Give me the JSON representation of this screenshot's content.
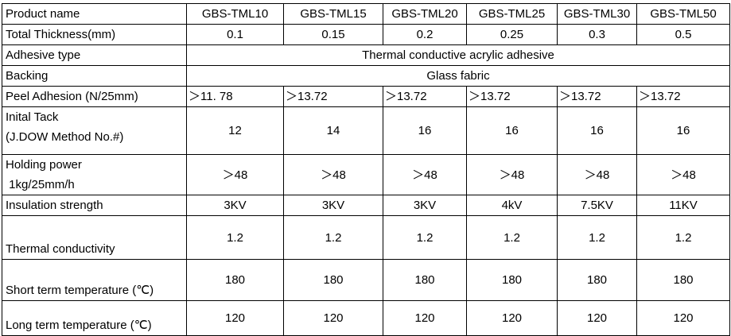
{
  "table": {
    "header": [
      "Product name",
      "GBS-TML10",
      "GBS-TML15",
      "GBS-TML20",
      "GBS-TML25",
      "GBS-TML30",
      "GBS-TML50"
    ],
    "rows": [
      {
        "label": [
          "Total Thickness(mm)"
        ],
        "cells": [
          "0.1",
          "0.15",
          "0.2",
          "0.25",
          "0.3",
          "0.5"
        ]
      },
      {
        "label": [
          "Adhesive type"
        ],
        "merged_value": "Thermal conductive acrylic adhesive"
      },
      {
        "label": [
          "Backing"
        ],
        "merged_value": "Glass fabric"
      },
      {
        "label": [
          "Peel Adhesion (N/25mm)"
        ],
        "cells": [
          "＞11. 78",
          "＞13.72",
          "＞13.72",
          "＞13.72",
          "＞13.72",
          "＞13.72"
        ]
      },
      {
        "label": [
          "Inital Tack",
          "(J.DOW Method No.#)"
        ],
        "cells": [
          "12",
          "14",
          "16",
          "16",
          "16",
          "16"
        ]
      },
      {
        "label": [
          "Holding power",
          " 1kg/25mm/h"
        ],
        "cells": [
          "＞48",
          "＞48",
          "＞48",
          "＞48",
          "＞48",
          "＞48"
        ]
      },
      {
        "label": [
          "Insulation strength"
        ],
        "cells": [
          "3KV",
          "3KV",
          "3KV",
          "4kV",
          "7.5KV",
          "11KV"
        ]
      },
      {
        "label": [
          "Thermal conductivity"
        ],
        "cells": [
          "1.2",
          "1.2",
          "1.2",
          "1.2",
          "1.2",
          "1.2"
        ]
      },
      {
        "label": [
          "Short term temperature (℃)"
        ],
        "cells": [
          "180",
          "180",
          "180",
          "180",
          "180",
          "180"
        ]
      },
      {
        "label": [
          "Long term temperature (℃)"
        ],
        "cells": [
          "120",
          "120",
          "120",
          "120",
          "120",
          "120"
        ]
      }
    ]
  }
}
